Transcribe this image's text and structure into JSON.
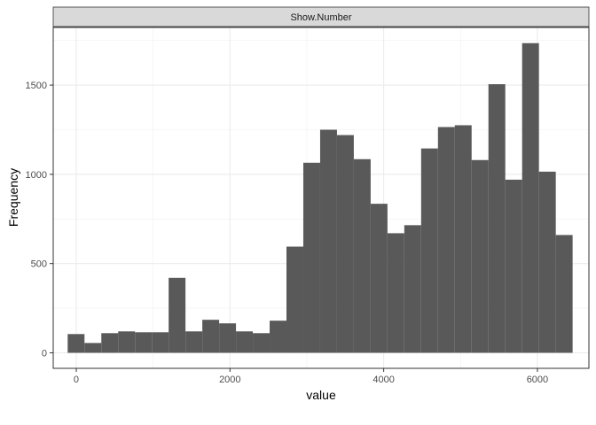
{
  "chart_data": {
    "type": "bar",
    "subtype": "histogram",
    "facet_label": "Show.Number",
    "xlabel": "value",
    "ylabel": "Frequency",
    "xlim": [
      -300,
      6670
    ],
    "ylim": [
      -87,
      1823
    ],
    "x_ticks": [
      0,
      2000,
      4000,
      6000
    ],
    "x_tick_labels": [
      "0",
      "2000",
      "4000",
      "6000"
    ],
    "y_ticks": [
      0,
      500,
      1000,
      1500
    ],
    "y_tick_labels": [
      "0",
      "500",
      "1000",
      "1500"
    ],
    "bin_start": -112,
    "bin_width": 219,
    "values": [
      105,
      55,
      110,
      120,
      115,
      115,
      420,
      120,
      185,
      165,
      120,
      110,
      180,
      595,
      1065,
      1250,
      1220,
      1085,
      835,
      670,
      715,
      1145,
      1265,
      1275,
      1080,
      1505,
      970,
      1735,
      1015,
      660
    ],
    "bar_color": "#595959",
    "grid": true,
    "theme": "bw"
  }
}
